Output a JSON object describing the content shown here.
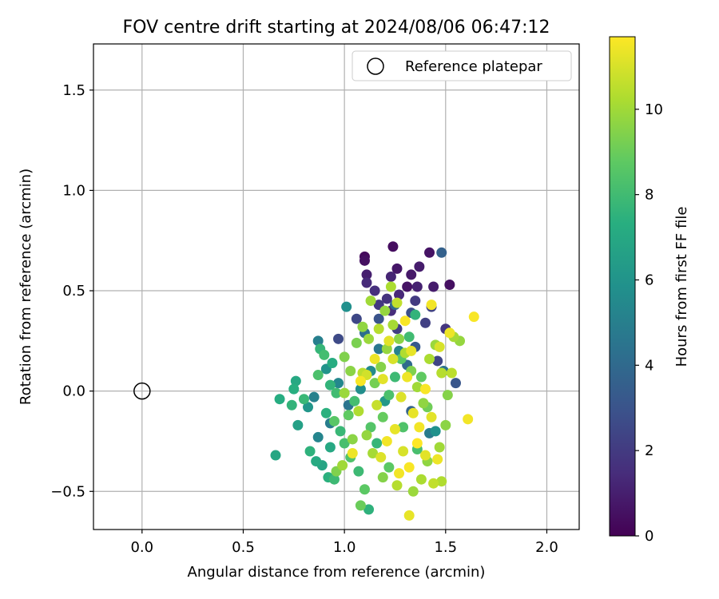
{
  "chart_data": {
    "type": "scatter",
    "title": "FOV centre drift starting at 2024/08/06 06:47:12",
    "xlabel": "Angular distance from reference (arcmin)",
    "ylabel": "Rotation from reference (arcmin)",
    "xlim": [
      -0.24,
      2.16
    ],
    "ylim": [
      -0.69,
      1.73
    ],
    "xticks": [
      0.0,
      0.5,
      1.0,
      1.5,
      2.0
    ],
    "xtick_labels": [
      "0.0",
      "0.5",
      "1.0",
      "1.5",
      "2.0"
    ],
    "yticks": [
      -0.5,
      0.0,
      0.5,
      1.0,
      1.5
    ],
    "ytick_labels": [
      "−0.5",
      "0.0",
      "0.5",
      "1.0",
      "1.5"
    ],
    "grid": true,
    "legend": {
      "position": "upper right",
      "label": "Reference platepar"
    },
    "reference_point": {
      "x": 0.0,
      "y": 0.0
    },
    "colorbar": {
      "label": "Hours from first FF file",
      "colormap": "viridis",
      "range": [
        0,
        11.7
      ],
      "ticks": [
        0,
        2,
        4,
        6,
        8,
        10
      ],
      "tick_labels": [
        "0",
        "2",
        "4",
        "6",
        "8",
        "10"
      ]
    },
    "series": [
      {
        "points": [
          {
            "x": 1.1,
            "y": 0.67,
            "h": 0.3
          },
          {
            "x": 1.24,
            "y": 0.72,
            "h": 0.4
          },
          {
            "x": 1.42,
            "y": 0.69,
            "h": 0.6
          },
          {
            "x": 1.1,
            "y": 0.65,
            "h": 0.5
          },
          {
            "x": 1.26,
            "y": 0.61,
            "h": 0.7
          },
          {
            "x": 1.37,
            "y": 0.62,
            "h": 0.9
          },
          {
            "x": 1.11,
            "y": 0.58,
            "h": 1.0
          },
          {
            "x": 1.23,
            "y": 0.57,
            "h": 1.2
          },
          {
            "x": 1.33,
            "y": 0.58,
            "h": 0.8
          },
          {
            "x": 1.52,
            "y": 0.53,
            "h": 0.5
          },
          {
            "x": 1.44,
            "y": 0.52,
            "h": 0.9
          },
          {
            "x": 1.11,
            "y": 0.54,
            "h": 1.4
          },
          {
            "x": 1.36,
            "y": 0.52,
            "h": 1.1
          },
          {
            "x": 1.31,
            "y": 0.52,
            "h": 0.6
          },
          {
            "x": 1.15,
            "y": 0.5,
            "h": 1.6
          },
          {
            "x": 1.27,
            "y": 0.48,
            "h": 1.3
          },
          {
            "x": 1.21,
            "y": 0.46,
            "h": 1.7
          },
          {
            "x": 1.35,
            "y": 0.45,
            "h": 2.0
          },
          {
            "x": 1.17,
            "y": 0.43,
            "h": 1.9
          },
          {
            "x": 1.43,
            "y": 0.42,
            "h": 2.3
          },
          {
            "x": 1.06,
            "y": 0.36,
            "h": 2.5
          },
          {
            "x": 1.23,
            "y": 0.4,
            "h": 1.5
          },
          {
            "x": 1.33,
            "y": 0.39,
            "h": 2.8
          },
          {
            "x": 1.5,
            "y": 0.31,
            "h": 1.8
          },
          {
            "x": 1.4,
            "y": 0.34,
            "h": 2.2
          },
          {
            "x": 0.97,
            "y": 0.26,
            "h": 2.6
          },
          {
            "x": 1.26,
            "y": 0.31,
            "h": 2.1
          },
          {
            "x": 1.46,
            "y": 0.15,
            "h": 2.4
          },
          {
            "x": 1.17,
            "y": 0.36,
            "h": 3.0
          },
          {
            "x": 1.55,
            "y": 0.04,
            "h": 3.1
          },
          {
            "x": 1.48,
            "y": 0.69,
            "h": 3.6
          },
          {
            "x": 1.25,
            "y": 0.43,
            "h": 3.9
          },
          {
            "x": 1.1,
            "y": 0.29,
            "h": 4.2
          },
          {
            "x": 1.35,
            "y": 0.22,
            "h": 3.3
          },
          {
            "x": 1.49,
            "y": 0.1,
            "h": 4.4
          },
          {
            "x": 1.31,
            "y": 0.13,
            "h": 4.0
          },
          {
            "x": 1.17,
            "y": 0.21,
            "h": 4.6
          },
          {
            "x": 0.87,
            "y": 0.25,
            "h": 5.0
          },
          {
            "x": 1.01,
            "y": 0.42,
            "h": 5.8
          },
          {
            "x": 1.27,
            "y": 0.2,
            "h": 5.2
          },
          {
            "x": 1.42,
            "y": -0.21,
            "h": 4.8
          },
          {
            "x": 1.13,
            "y": 0.1,
            "h": 5.5
          },
          {
            "x": 1.45,
            "y": -0.2,
            "h": 5.9
          },
          {
            "x": 1.33,
            "y": -0.1,
            "h": 3.7
          },
          {
            "x": 0.91,
            "y": 0.11,
            "h": 6.0
          },
          {
            "x": 0.97,
            "y": 0.04,
            "h": 5.4
          },
          {
            "x": 0.85,
            "y": -0.03,
            "h": 5.1
          },
          {
            "x": 1.02,
            "y": -0.07,
            "h": 4.5
          },
          {
            "x": 1.08,
            "y": 0.01,
            "h": 5.7
          },
          {
            "x": 0.93,
            "y": -0.16,
            "h": 4.9
          },
          {
            "x": 1.2,
            "y": -0.05,
            "h": 6.2
          },
          {
            "x": 0.87,
            "y": -0.23,
            "h": 5.3
          },
          {
            "x": 0.82,
            "y": -0.08,
            "h": 6.1
          },
          {
            "x": 0.77,
            "y": -0.17,
            "h": 6.6
          },
          {
            "x": 0.66,
            "y": -0.32,
            "h": 6.9
          },
          {
            "x": 0.68,
            "y": -0.04,
            "h": 7.2
          },
          {
            "x": 0.74,
            "y": -0.07,
            "h": 7.6
          },
          {
            "x": 0.76,
            "y": 0.05,
            "h": 7.0
          },
          {
            "x": 0.75,
            "y": 0.01,
            "h": 7.3
          },
          {
            "x": 0.8,
            "y": -0.04,
            "h": 7.8
          },
          {
            "x": 0.83,
            "y": -0.3,
            "h": 7.5
          },
          {
            "x": 0.86,
            "y": -0.35,
            "h": 7.1
          },
          {
            "x": 0.89,
            "y": -0.37,
            "h": 6.8
          },
          {
            "x": 0.92,
            "y": -0.43,
            "h": 7.4
          },
          {
            "x": 0.95,
            "y": -0.44,
            "h": 7.9
          },
          {
            "x": 0.88,
            "y": 0.21,
            "h": 7.7
          },
          {
            "x": 0.9,
            "y": 0.18,
            "h": 8.1
          },
          {
            "x": 0.94,
            "y": 0.14,
            "h": 7.2
          },
          {
            "x": 0.87,
            "y": 0.08,
            "h": 8.3
          },
          {
            "x": 0.93,
            "y": 0.03,
            "h": 7.6
          },
          {
            "x": 0.96,
            "y": -0.01,
            "h": 8.0
          },
          {
            "x": 0.91,
            "y": -0.11,
            "h": 7.4
          },
          {
            "x": 0.95,
            "y": -0.15,
            "h": 8.6
          },
          {
            "x": 0.98,
            "y": -0.2,
            "h": 7.8
          },
          {
            "x": 1.0,
            "y": -0.26,
            "h": 8.2
          },
          {
            "x": 0.93,
            "y": -0.28,
            "h": 7.0
          },
          {
            "x": 1.03,
            "y": -0.33,
            "h": 8.4
          },
          {
            "x": 1.07,
            "y": -0.4,
            "h": 7.9
          },
          {
            "x": 1.1,
            "y": -0.49,
            "h": 8.7
          },
          {
            "x": 1.12,
            "y": -0.59,
            "h": 7.5
          },
          {
            "x": 1.08,
            "y": -0.57,
            "h": 9.0
          },
          {
            "x": 1.02,
            "y": -0.12,
            "h": 8.8
          },
          {
            "x": 1.05,
            "y": -0.05,
            "h": 8.1
          },
          {
            "x": 1.13,
            "y": -0.18,
            "h": 8.5
          },
          {
            "x": 1.16,
            "y": -0.26,
            "h": 7.7
          },
          {
            "x": 1.19,
            "y": -0.13,
            "h": 8.9
          },
          {
            "x": 1.22,
            "y": -0.02,
            "h": 8.3
          },
          {
            "x": 1.25,
            "y": 0.07,
            "h": 7.9
          },
          {
            "x": 1.28,
            "y": 0.16,
            "h": 8.6
          },
          {
            "x": 1.32,
            "y": 0.27,
            "h": 8.0
          },
          {
            "x": 1.35,
            "y": 0.38,
            "h": 7.6
          },
          {
            "x": 1.29,
            "y": -0.18,
            "h": 8.4
          },
          {
            "x": 1.38,
            "y": 0.07,
            "h": 8.8
          },
          {
            "x": 1.41,
            "y": -0.08,
            "h": 9.1
          },
          {
            "x": 1.36,
            "y": -0.29,
            "h": 8.2
          },
          {
            "x": 1.22,
            "y": -0.38,
            "h": 8.7
          },
          {
            "x": 1.15,
            "y": 0.04,
            "h": 9.2
          },
          {
            "x": 1.0,
            "y": 0.17,
            "h": 9.4
          },
          {
            "x": 1.03,
            "y": 0.1,
            "h": 9.6
          },
          {
            "x": 1.06,
            "y": 0.24,
            "h": 9.3
          },
          {
            "x": 1.09,
            "y": 0.32,
            "h": 9.7
          },
          {
            "x": 1.12,
            "y": 0.26,
            "h": 9.9
          },
          {
            "x": 1.18,
            "y": 0.12,
            "h": 9.5
          },
          {
            "x": 1.21,
            "y": 0.21,
            "h": 9.8
          },
          {
            "x": 1.24,
            "y": 0.33,
            "h": 10.1
          },
          {
            "x": 1.27,
            "y": 0.26,
            "h": 9.6
          },
          {
            "x": 1.3,
            "y": 0.19,
            "h": 10.3
          },
          {
            "x": 1.33,
            "y": 0.1,
            "h": 9.4
          },
          {
            "x": 1.36,
            "y": 0.02,
            "h": 10.0
          },
          {
            "x": 1.39,
            "y": -0.06,
            "h": 9.7
          },
          {
            "x": 1.42,
            "y": 0.16,
            "h": 10.2
          },
          {
            "x": 1.45,
            "y": 0.23,
            "h": 9.9
          },
          {
            "x": 1.48,
            "y": 0.09,
            "h": 10.4
          },
          {
            "x": 1.51,
            "y": -0.02,
            "h": 9.5
          },
          {
            "x": 1.54,
            "y": 0.27,
            "h": 10.1
          },
          {
            "x": 1.57,
            "y": 0.25,
            "h": 9.8
          },
          {
            "x": 1.53,
            "y": 0.09,
            "h": 10.5
          },
          {
            "x": 1.5,
            "y": -0.17,
            "h": 9.6
          },
          {
            "x": 1.47,
            "y": -0.28,
            "h": 10.0
          },
          {
            "x": 1.44,
            "y": -0.46,
            "h": 10.6
          },
          {
            "x": 1.48,
            "y": -0.45,
            "h": 10.3
          },
          {
            "x": 1.41,
            "y": -0.35,
            "h": 9.7
          },
          {
            "x": 1.38,
            "y": -0.44,
            "h": 10.2
          },
          {
            "x": 1.34,
            "y": -0.5,
            "h": 9.9
          },
          {
            "x": 1.26,
            "y": -0.47,
            "h": 10.4
          },
          {
            "x": 1.19,
            "y": -0.43,
            "h": 9.5
          },
          {
            "x": 1.14,
            "y": -0.31,
            "h": 10.1
          },
          {
            "x": 1.11,
            "y": -0.22,
            "h": 9.8
          },
          {
            "x": 1.07,
            "y": -0.1,
            "h": 10.3
          },
          {
            "x": 1.04,
            "y": -0.24,
            "h": 9.6
          },
          {
            "x": 0.99,
            "y": -0.37,
            "h": 10.0
          },
          {
            "x": 0.96,
            "y": -0.4,
            "h": 9.4
          },
          {
            "x": 1.0,
            "y": -0.01,
            "h": 9.9
          },
          {
            "x": 1.09,
            "y": 0.09,
            "h": 10.5
          },
          {
            "x": 1.23,
            "y": 0.52,
            "h": 10.2
          },
          {
            "x": 1.2,
            "y": 0.4,
            "h": 9.8
          },
          {
            "x": 1.26,
            "y": 0.44,
            "h": 10.6
          },
          {
            "x": 1.17,
            "y": 0.31,
            "h": 10.4
          },
          {
            "x": 1.13,
            "y": 0.45,
            "h": 10.0
          },
          {
            "x": 1.16,
            "y": -0.07,
            "h": 10.7
          },
          {
            "x": 1.11,
            "y": 0.08,
            "h": 10.9
          },
          {
            "x": 1.24,
            "y": 0.16,
            "h": 11.0
          },
          {
            "x": 1.19,
            "y": 0.06,
            "h": 11.2
          },
          {
            "x": 1.28,
            "y": -0.03,
            "h": 11.1
          },
          {
            "x": 1.31,
            "y": 0.07,
            "h": 11.4
          },
          {
            "x": 1.34,
            "y": -0.11,
            "h": 11.3
          },
          {
            "x": 1.37,
            "y": -0.18,
            "h": 11.5
          },
          {
            "x": 1.4,
            "y": 0.01,
            "h": 11.6
          },
          {
            "x": 1.43,
            "y": -0.13,
            "h": 11.2
          },
          {
            "x": 1.46,
            "y": -0.34,
            "h": 11.4
          },
          {
            "x": 1.32,
            "y": -0.38,
            "h": 11.6
          },
          {
            "x": 1.29,
            "y": -0.3,
            "h": 11.0
          },
          {
            "x": 1.25,
            "y": -0.19,
            "h": 11.3
          },
          {
            "x": 1.21,
            "y": -0.25,
            "h": 11.5
          },
          {
            "x": 1.18,
            "y": -0.33,
            "h": 11.1
          },
          {
            "x": 1.15,
            "y": 0.16,
            "h": 11.4
          },
          {
            "x": 1.22,
            "y": 0.25,
            "h": 11.2
          },
          {
            "x": 1.3,
            "y": 0.35,
            "h": 11.6
          },
          {
            "x": 1.33,
            "y": 0.2,
            "h": 11.3
          },
          {
            "x": 1.43,
            "y": 0.43,
            "h": 11.5
          },
          {
            "x": 1.47,
            "y": 0.22,
            "h": 11.0
          },
          {
            "x": 1.52,
            "y": 0.29,
            "h": 11.4
          },
          {
            "x": 1.64,
            "y": 0.37,
            "h": 11.6
          },
          {
            "x": 1.61,
            "y": -0.14,
            "h": 11.5
          },
          {
            "x": 1.32,
            "y": -0.62,
            "h": 11.3
          },
          {
            "x": 1.04,
            "y": -0.31,
            "h": 11.4
          },
          {
            "x": 1.08,
            "y": 0.05,
            "h": 11.6
          },
          {
            "x": 1.36,
            "y": -0.26,
            "h": 11.7
          },
          {
            "x": 1.27,
            "y": -0.41,
            "h": 11.5
          },
          {
            "x": 1.4,
            "y": -0.32,
            "h": 11.2
          }
        ]
      }
    ]
  }
}
